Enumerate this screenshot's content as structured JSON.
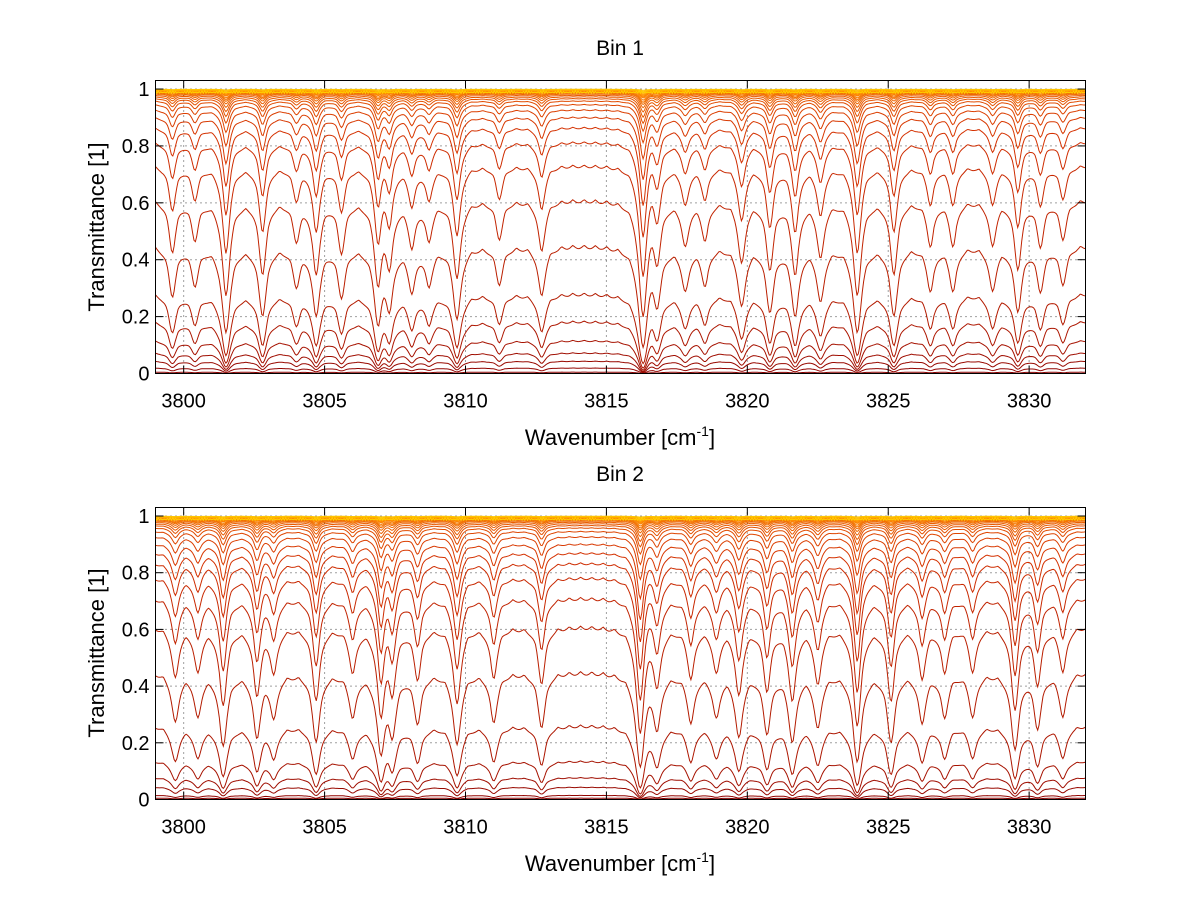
{
  "chart_data": [
    {
      "type": "line",
      "title": "Bin 1",
      "xlabel": "Wavenumber [cm",
      "xlabel_sup": "-1",
      "xlabel_end": "]",
      "ylabel": "Transmittance [1]",
      "xlim": [
        3799,
        3832
      ],
      "ylim": [
        0,
        1.03
      ],
      "xticks": [
        3800,
        3805,
        3810,
        3815,
        3820,
        3825,
        3830
      ],
      "xtick_labels": [
        "3800",
        "3805",
        "3810",
        "3815",
        "3820",
        "3825",
        "3830"
      ],
      "yticks": [
        0,
        0.2,
        0.4,
        0.6,
        0.8,
        1
      ],
      "ytick_labels": [
        "0",
        "0.2",
        "0.4",
        "0.6",
        "0.8",
        "1"
      ],
      "grid": true,
      "series_count": 32,
      "baseline_levels": [
        0.005,
        0.02,
        0.045,
        0.075,
        0.12,
        0.19,
        0.29,
        0.46,
        0.62,
        0.74,
        0.82,
        0.87,
        0.905,
        0.93,
        0.948,
        0.96,
        0.968,
        0.974,
        0.979,
        0.983,
        0.986,
        0.988,
        0.99,
        0.992,
        0.993,
        0.994,
        0.995,
        0.996,
        0.997,
        0.998,
        0.999,
        1.0
      ],
      "lines": [
        {
          "center": 3799.6,
          "strength": 0.7
        },
        {
          "center": 3800.4,
          "strength": 0.5
        },
        {
          "center": 3801.5,
          "strength": 1.6
        },
        {
          "center": 3802.8,
          "strength": 1.1
        },
        {
          "center": 3804.0,
          "strength": 0.5
        },
        {
          "center": 3804.7,
          "strength": 1.1
        },
        {
          "center": 3805.6,
          "strength": 0.7
        },
        {
          "center": 3806.9,
          "strength": 1.3
        },
        {
          "center": 3807.3,
          "strength": 0.9
        },
        {
          "center": 3808.1,
          "strength": 0.6
        },
        {
          "center": 3808.7,
          "strength": 0.5
        },
        {
          "center": 3809.7,
          "strength": 1.2
        },
        {
          "center": 3811.2,
          "strength": 0.5
        },
        {
          "center": 3812.7,
          "strength": 0.7
        },
        {
          "center": 3816.3,
          "strength": 2.2
        },
        {
          "center": 3816.8,
          "strength": 0.8
        },
        {
          "center": 3817.8,
          "strength": 0.6
        },
        {
          "center": 3818.5,
          "strength": 0.5
        },
        {
          "center": 3819.8,
          "strength": 0.9
        },
        {
          "center": 3820.8,
          "strength": 1.0
        },
        {
          "center": 3821.7,
          "strength": 1.1
        },
        {
          "center": 3822.6,
          "strength": 0.8
        },
        {
          "center": 3823.9,
          "strength": 1.6
        },
        {
          "center": 3825.2,
          "strength": 1.1
        },
        {
          "center": 3826.5,
          "strength": 0.6
        },
        {
          "center": 3827.3,
          "strength": 0.6
        },
        {
          "center": 3828.7,
          "strength": 0.6
        },
        {
          "center": 3829.6,
          "strength": 1.0
        },
        {
          "center": 3830.4,
          "strength": 0.6
        },
        {
          "center": 3831.2,
          "strength": 0.5
        }
      ],
      "colors": {
        "dark": "#8b0000",
        "mid": "#d43000",
        "light": "#ff8c00",
        "top": "#ffd000",
        "accent": "#00c8d8"
      }
    },
    {
      "type": "line",
      "title": "Bin 2",
      "xlabel": "Wavenumber [cm",
      "xlabel_sup": "-1",
      "xlabel_end": "]",
      "ylabel": "Transmittance [1]",
      "xlim": [
        3799,
        3832
      ],
      "ylim": [
        0,
        1.03
      ],
      "xticks": [
        3800,
        3805,
        3810,
        3815,
        3820,
        3825,
        3830
      ],
      "xtick_labels": [
        "3800",
        "3805",
        "3810",
        "3815",
        "3820",
        "3825",
        "3830"
      ],
      "yticks": [
        0,
        0.2,
        0.4,
        0.6,
        0.8,
        1
      ],
      "ytick_labels": [
        "0",
        "0.2",
        "0.4",
        "0.6",
        "0.8",
        "1"
      ],
      "grid": true,
      "series_count": 32,
      "baseline_levels": [
        0.005,
        0.015,
        0.045,
        0.08,
        0.14,
        0.27,
        0.46,
        0.62,
        0.72,
        0.79,
        0.84,
        0.875,
        0.905,
        0.93,
        0.948,
        0.96,
        0.968,
        0.974,
        0.979,
        0.983,
        0.986,
        0.988,
        0.99,
        0.992,
        0.993,
        0.994,
        0.995,
        0.996,
        0.997,
        0.998,
        0.999,
        1.0
      ],
      "lines": [
        {
          "center": 3799.7,
          "strength": 0.7
        },
        {
          "center": 3800.5,
          "strength": 0.6
        },
        {
          "center": 3801.4,
          "strength": 1.2
        },
        {
          "center": 3802.6,
          "strength": 1.0
        },
        {
          "center": 3803.2,
          "strength": 0.6
        },
        {
          "center": 3804.7,
          "strength": 1.1
        },
        {
          "center": 3806.0,
          "strength": 0.6
        },
        {
          "center": 3807.0,
          "strength": 1.4
        },
        {
          "center": 3807.4,
          "strength": 0.9
        },
        {
          "center": 3808.3,
          "strength": 0.7
        },
        {
          "center": 3809.7,
          "strength": 1.2
        },
        {
          "center": 3811.0,
          "strength": 0.7
        },
        {
          "center": 3812.7,
          "strength": 0.8
        },
        {
          "center": 3816.2,
          "strength": 1.9
        },
        {
          "center": 3816.8,
          "strength": 0.8
        },
        {
          "center": 3818.0,
          "strength": 0.7
        },
        {
          "center": 3818.9,
          "strength": 0.6
        },
        {
          "center": 3819.7,
          "strength": 1.0
        },
        {
          "center": 3820.7,
          "strength": 0.9
        },
        {
          "center": 3821.6,
          "strength": 1.1
        },
        {
          "center": 3822.5,
          "strength": 0.8
        },
        {
          "center": 3823.9,
          "strength": 1.7
        },
        {
          "center": 3825.1,
          "strength": 1.1
        },
        {
          "center": 3826.2,
          "strength": 0.7
        },
        {
          "center": 3827.0,
          "strength": 0.6
        },
        {
          "center": 3828.0,
          "strength": 0.6
        },
        {
          "center": 3829.5,
          "strength": 1.3
        },
        {
          "center": 3830.3,
          "strength": 0.8
        },
        {
          "center": 3831.2,
          "strength": 0.6
        }
      ],
      "colors": {
        "dark": "#8b0000",
        "mid": "#d43000",
        "light": "#ff8c00",
        "top": "#ffd000",
        "accent": "#00c8d8"
      }
    }
  ]
}
